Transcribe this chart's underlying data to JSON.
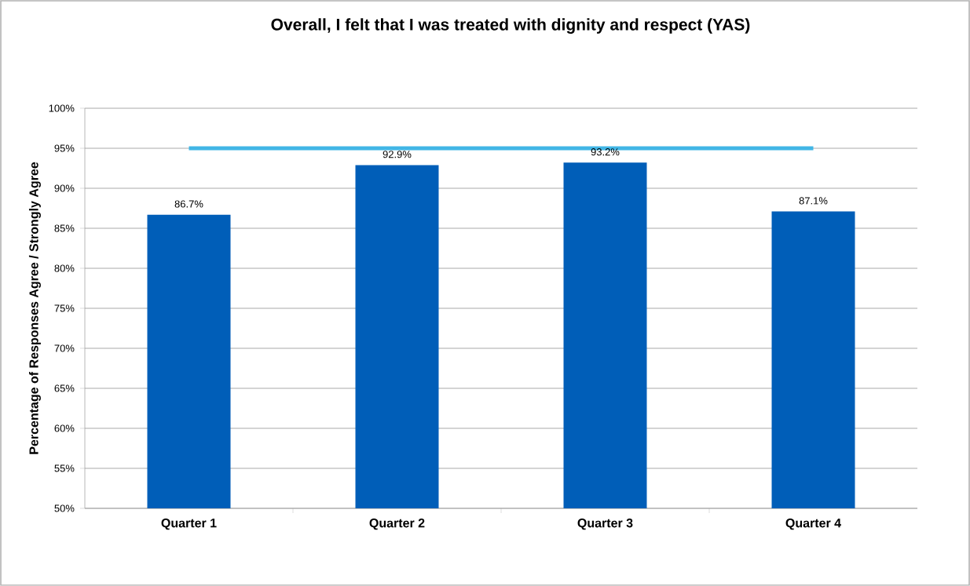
{
  "chart_data": {
    "type": "bar",
    "title": "Overall, I felt that I was treated with dignity and respect (YAS)",
    "ylabel": "Percentage of Responses Agree / Strongly Agree",
    "categories": [
      "Quarter 1",
      "Quarter 2",
      "Quarter 3",
      "Quarter 4"
    ],
    "series": [
      {
        "color": "#005eb8",
        "values": [
          86.7,
          92.9,
          93.2,
          87.1
        ],
        "value_labels": [
          "86.7%",
          "92.9%",
          "93.2%",
          "87.1%"
        ]
      },
      {
        "type": "line",
        "color": "#41b6e6",
        "values": [
          95,
          95,
          95,
          95
        ],
        "marker": "none"
      }
    ],
    "ylim": [
      50,
      100
    ],
    "yticks": [
      {
        "value": 50,
        "label": "50%"
      },
      {
        "value": 55,
        "label": "55%"
      },
      {
        "value": 60,
        "label": "60%"
      },
      {
        "value": 65,
        "label": "65%"
      },
      {
        "value": 70,
        "label": "70%"
      },
      {
        "value": 75,
        "label": "75%"
      },
      {
        "value": 80,
        "label": "80%"
      },
      {
        "value": 85,
        "label": "85%"
      },
      {
        "value": 90,
        "label": "90%"
      },
      {
        "value": 95,
        "label": "95%"
      },
      {
        "value": 100,
        "label": "100%"
      }
    ],
    "grid": "y"
  }
}
